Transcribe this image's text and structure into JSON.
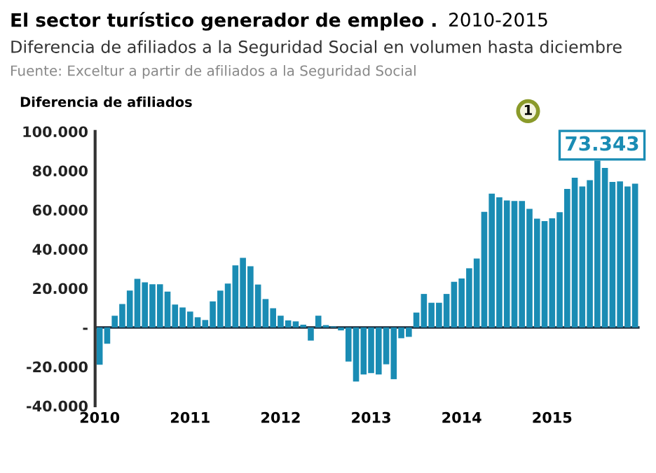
{
  "chart_data": {
    "type": "bar",
    "title": "El sector turístico generador de empleo . 2010-2015",
    "subtitle": "Diferencia de afiliados a la Seguridad Social en volumen hasta diciembre",
    "ylabel": "Diferencia de afiliados",
    "annotations": [
      "Fuente: Exceltur a partir de afiliados a la Seguridad Social",
      "1",
      "73.343"
    ],
    "ref_lines": [
      {
        "axis": "y",
        "value": 0,
        "color": "#1d2b3a"
      }
    ],
    "categories": [
      "2010",
      null,
      null,
      null,
      null,
      null,
      null,
      null,
      null,
      null,
      null,
      null,
      "2011",
      null,
      null,
      null,
      null,
      null,
      null,
      null,
      null,
      null,
      null,
      null,
      "2012",
      null,
      null,
      null,
      null,
      null,
      null,
      null,
      null,
      null,
      null,
      null,
      "2013",
      null,
      null,
      null,
      null,
      null,
      null,
      null,
      null,
      null,
      null,
      null,
      "2014",
      null,
      null,
      null,
      null,
      null,
      null,
      null,
      null,
      null,
      null,
      null,
      "2015",
      null,
      null,
      null,
      null,
      null,
      null,
      null,
      null,
      null,
      null,
      null
    ],
    "series": [
      {
        "color": "#1a8cb4",
        "values": [
          -19000,
          -8300,
          6000,
          12000,
          18800,
          24800,
          23000,
          22000,
          22000,
          18300,
          11700,
          10200,
          8100,
          5200,
          3800,
          13300,
          18800,
          22400,
          31700,
          35500,
          31200,
          21900,
          14500,
          9800,
          6000,
          3600,
          3100,
          1400,
          -6700,
          6000,
          1200,
          500,
          -1500,
          -17400,
          -27600,
          -24000,
          -23300,
          -24000,
          -18800,
          -26400,
          -5500,
          -4800,
          7600,
          17100,
          12600,
          12600,
          17100,
          23300,
          25000,
          30200,
          35200,
          59000,
          68300,
          66400,
          64800,
          64500,
          64500,
          60500,
          55500,
          54300,
          55700,
          58800,
          70700,
          76400,
          71900,
          75200,
          85200,
          81400,
          74300,
          74500,
          71900,
          73343
        ]
      }
    ],
    "ylim": [
      -40000,
      100000
    ],
    "yticks": [
      {
        "value": -40000,
        "label": "-40.000"
      },
      {
        "value": -20000,
        "label": "-20.000"
      },
      {
        "value": 0,
        "label": "-"
      },
      {
        "value": 20000,
        "label": "20.000"
      },
      {
        "value": 40000,
        "label": "40.000"
      },
      {
        "value": 60000,
        "label": "60.000"
      },
      {
        "value": 80000,
        "label": "80.000"
      },
      {
        "value": 100000,
        "label": "100.000"
      }
    ],
    "grid": false,
    "legend": false
  }
}
